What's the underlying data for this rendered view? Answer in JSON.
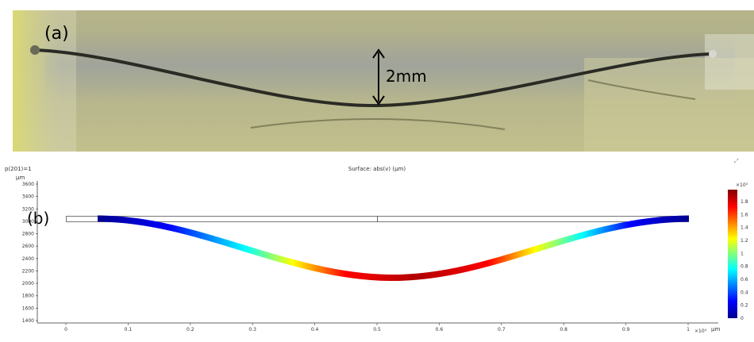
{
  "panel_a": {
    "label": "(a)",
    "measurement": "2mm"
  },
  "panel_b": {
    "label": "(b)",
    "param_text": "p(201)=1",
    "title": "Surface: abs(v) (μm)",
    "y_unit": "μm",
    "x_unit": "μm",
    "x_multiplier": "×10⁴",
    "colorbar_multiplier": "×10³",
    "y_ticks": [
      "3600",
      "3400",
      "3200",
      "3000",
      "2800",
      "2600",
      "2400",
      "2200",
      "2000",
      "1800",
      "1600",
      "1400"
    ],
    "x_ticks": [
      "0",
      "0.1",
      "0.2",
      "0.3",
      "0.4",
      "0.5",
      "0.6",
      "0.7",
      "0.8",
      "0.9",
      "1"
    ],
    "colorbar_ticks": [
      "1.8",
      "1.6",
      "1.4",
      "1.2",
      "1",
      "0.8",
      "0.6",
      "0.4",
      "0.2",
      "0"
    ]
  },
  "colors": {
    "photo_background": "#b7b787",
    "colormap": [
      "#00008f",
      "#0000ff",
      "#00ffff",
      "#ffff00",
      "#ff0000",
      "#800000"
    ]
  }
}
